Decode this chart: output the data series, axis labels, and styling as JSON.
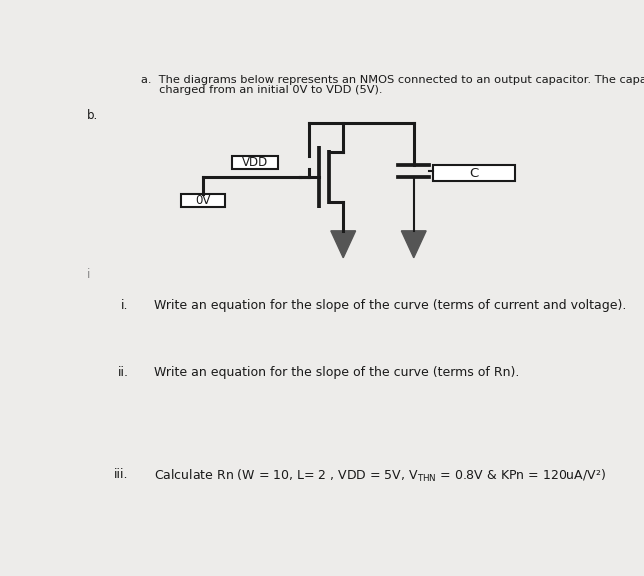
{
  "bg_color": "#edecea",
  "line_color": "#1a1a1a",
  "arrow_color": "#555555",
  "text_color": "#1a1a1a",
  "label_vdd": "VDD",
  "label_0v": "0V",
  "label_c": "C",
  "q_i": "i.",
  "q_ii": "ii.",
  "q_iii": "iii.",
  "text_i": "Write an equation for the slope of the curve (terms of current and voltage).",
  "text_ii": "Write an equation for the slope of the curve (terms of Rn).",
  "title_line1": "a.  The diagrams below represents an NMOS connected to an output capacitor. The capacitor is",
  "title_line2": "     charged from an initial 0V to VDD (5V).",
  "label_b": "b.",
  "label_i_margin": "i",
  "font_size_title": 8.2,
  "font_size_labels": 8.5,
  "font_size_questions": 9.0
}
